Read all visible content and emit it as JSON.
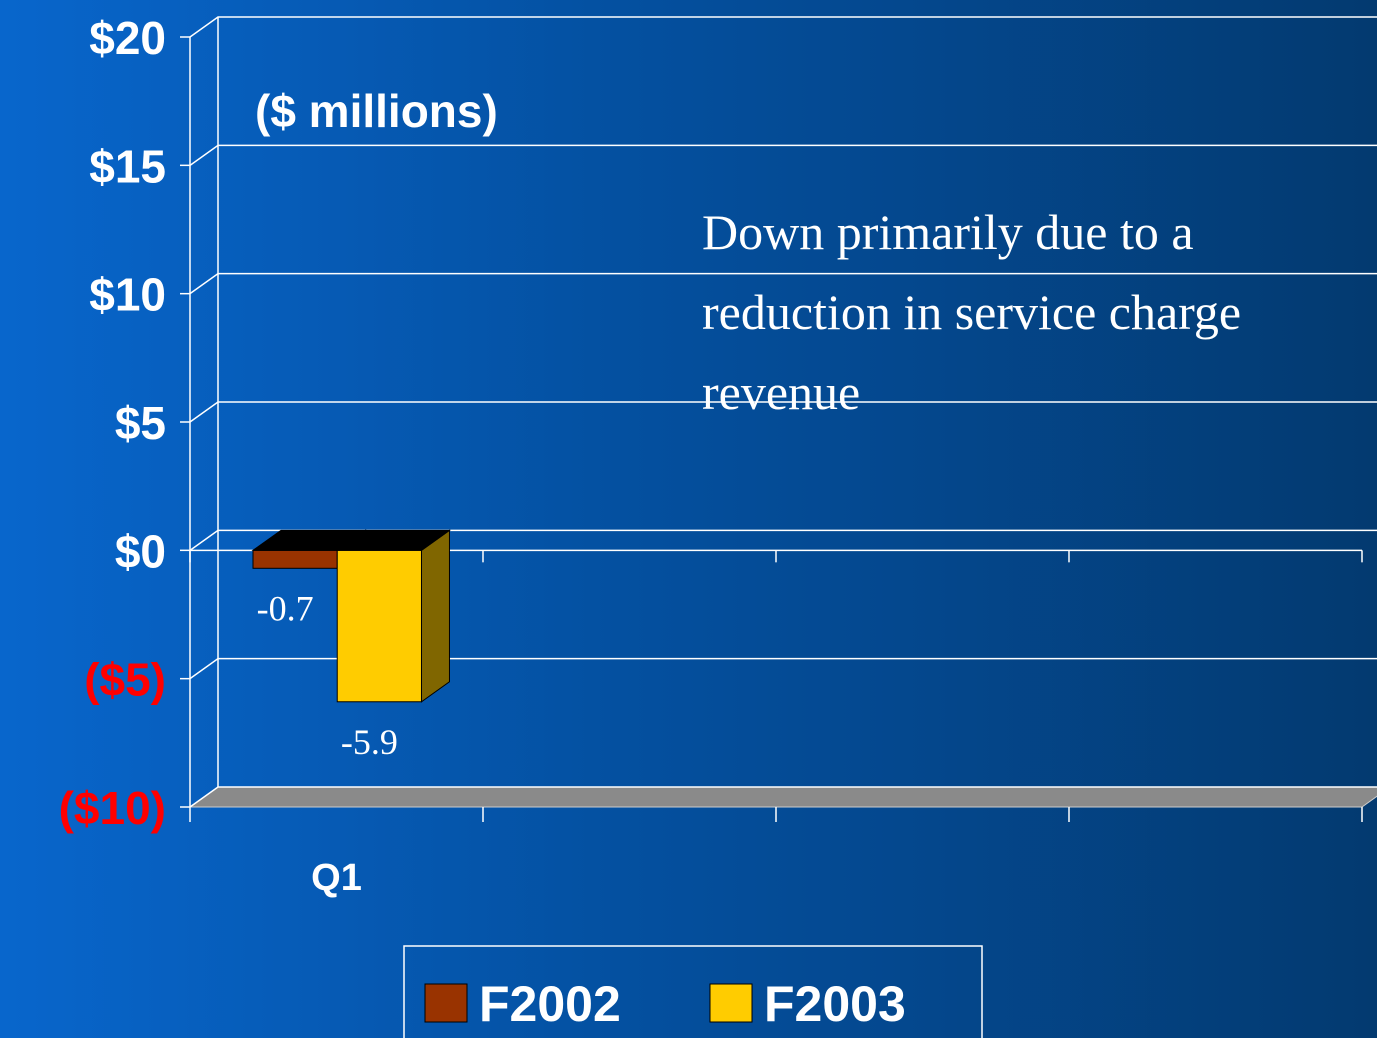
{
  "chart_data": {
    "type": "bar3d",
    "subtitle": "($ millions)",
    "annotation": "Down primarily due to a reduction in service charge revenue",
    "categories": [
      "Q1",
      null,
      null,
      null
    ],
    "series": [
      {
        "name": "F2002",
        "color": "#993300",
        "values": [
          -0.7,
          null,
          null,
          null
        ]
      },
      {
        "name": "F2003",
        "color": "#ffcc00",
        "values": [
          -5.9,
          null,
          null,
          null
        ]
      }
    ],
    "ylim": [
      -10,
      20
    ],
    "yticks": [
      {
        "value": -10,
        "label": "($10)"
      },
      {
        "value": -5,
        "label": "($5)"
      },
      {
        "value": 0,
        "label": "$0"
      },
      {
        "value": 5,
        "label": "$5"
      },
      {
        "value": 10,
        "label": "$10"
      },
      {
        "value": 15,
        "label": "$15"
      },
      {
        "value": 20,
        "label": "$20"
      }
    ],
    "negative_tick_color": "#ff0000",
    "grid": true,
    "legend": "bottom"
  }
}
